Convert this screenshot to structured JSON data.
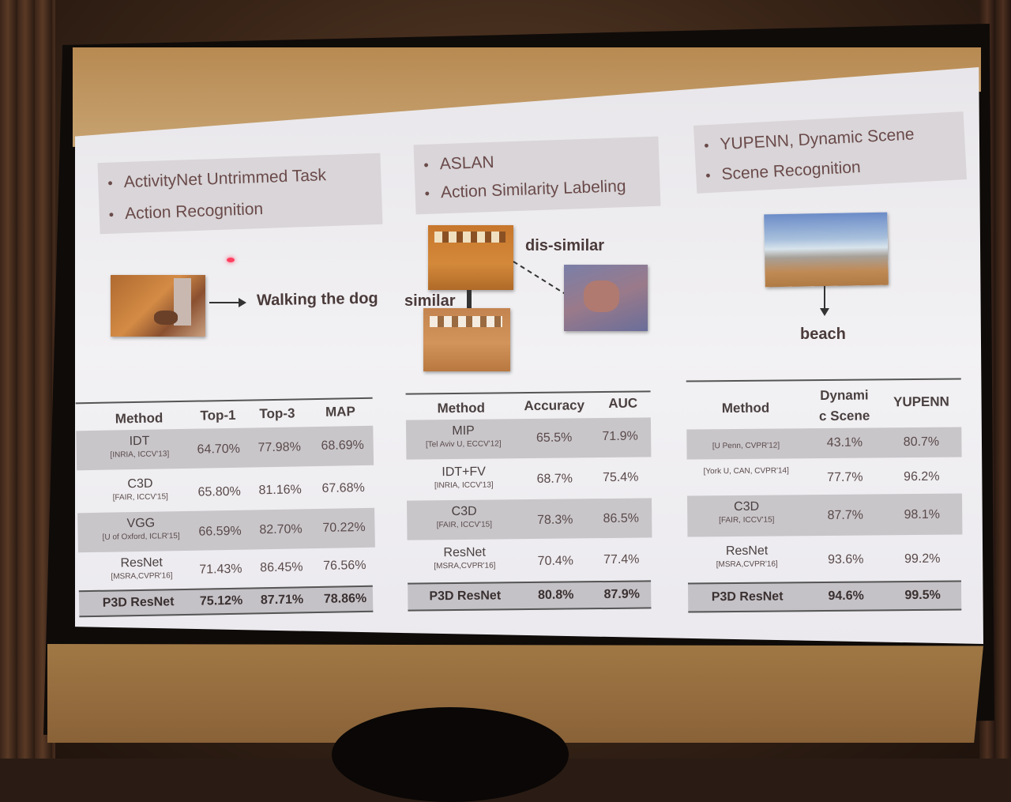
{
  "panels": [
    {
      "bullets": [
        "ActivityNet Untrimmed Task",
        "Action Recognition"
      ],
      "caption": "Walking the dog",
      "table": {
        "headers": [
          "Method",
          "Top-1",
          "Top-3",
          "MAP"
        ],
        "rows": [
          {
            "name": "IDT",
            "ref": "[INRIA, ICCV'13]",
            "values": [
              "64.70%",
              "77.98%",
              "68.69%"
            ],
            "shaded": true
          },
          {
            "name": "C3D",
            "ref": "[FAIR, ICCV'15]",
            "values": [
              "65.80%",
              "81.16%",
              "67.68%"
            ],
            "shaded": false
          },
          {
            "name": "VGG",
            "ref": "[U of Oxford, ICLR'15]",
            "values": [
              "66.59%",
              "82.70%",
              "70.22%"
            ],
            "shaded": true
          },
          {
            "name": "ResNet",
            "ref": "[MSRA,CVPR'16]",
            "values": [
              "71.43%",
              "86.45%",
              "76.56%"
            ],
            "shaded": false
          },
          {
            "name": "P3D ResNet",
            "ref": "",
            "values": [
              "75.12%",
              "87.71%",
              "78.86%"
            ],
            "best": true
          }
        ]
      }
    },
    {
      "bullets": [
        "ASLAN",
        "Action Similarity Labeling"
      ],
      "label_dissimilar": "dis-similar",
      "label_similar": "similar",
      "table": {
        "headers": [
          "Method",
          "Accuracy",
          "AUC"
        ],
        "rows": [
          {
            "name": "MIP",
            "ref": "[Tel Aviv U, ECCV'12]",
            "values": [
              "65.5%",
              "71.9%"
            ],
            "shaded": true
          },
          {
            "name": "IDT+FV",
            "ref": "[INRIA, ICCV'13]",
            "values": [
              "68.7%",
              "75.4%"
            ],
            "shaded": false
          },
          {
            "name": "C3D",
            "ref": "[FAIR, ICCV'15]",
            "values": [
              "78.3%",
              "86.5%"
            ],
            "shaded": true
          },
          {
            "name": "ResNet",
            "ref": "[MSRA,CVPR'16]",
            "values": [
              "70.4%",
              "77.4%"
            ],
            "shaded": false
          },
          {
            "name": "P3D ResNet",
            "ref": "",
            "values": [
              "80.8%",
              "87.9%"
            ],
            "best": true
          }
        ]
      }
    },
    {
      "bullets": [
        "YUPENN, Dynamic Scene",
        "Scene Recognition"
      ],
      "caption": "beach",
      "table": {
        "headers": [
          "Method",
          "Dynami c Scene",
          "YUPENN"
        ],
        "header_line1": "Dynami",
        "header_line2": "c Scene",
        "rows": [
          {
            "name": "",
            "ref": "[U Penn, CVPR'12]",
            "values": [
              "43.1%",
              "80.7%"
            ],
            "shaded": true
          },
          {
            "name": "",
            "ref": "[York U, CAN, CVPR'14]",
            "values": [
              "77.7%",
              "96.2%"
            ],
            "shaded": false
          },
          {
            "name": "C3D",
            "ref": "[FAIR, ICCV'15]",
            "values": [
              "87.7%",
              "98.1%"
            ],
            "shaded": true
          },
          {
            "name": "ResNet",
            "ref": "[MSRA,CVPR'16]",
            "values": [
              "93.6%",
              "99.2%"
            ],
            "shaded": false
          },
          {
            "name": "P3D ResNet",
            "ref": "",
            "values": [
              "94.6%",
              "99.5%"
            ],
            "best": true
          }
        ]
      }
    }
  ]
}
